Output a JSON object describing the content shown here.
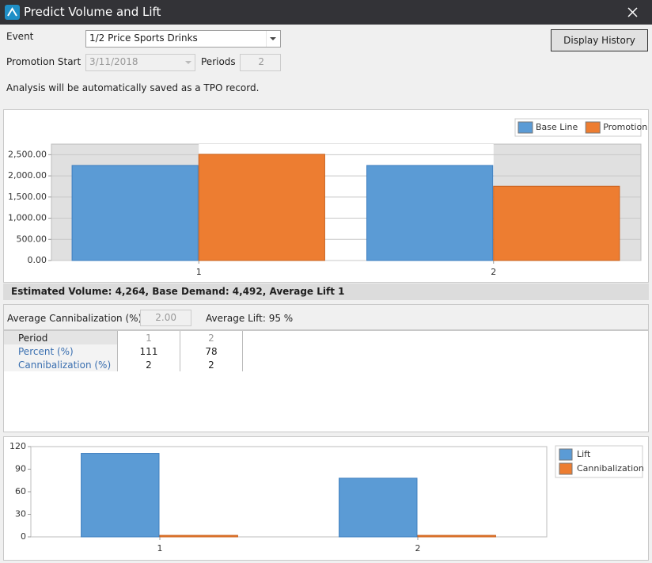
{
  "window": {
    "title": "Predict Volume and Lift"
  },
  "form": {
    "event_label": "Event",
    "event_value": "1/2 Price Sports Drinks",
    "display_history": "Display History",
    "promotion_start_label": "Promotion Start",
    "promotion_start_value": "3/11/2018",
    "periods_label": "Periods",
    "periods_value": "2",
    "note": "Analysis will be automatically saved as a TPO record."
  },
  "summary": "Estimated Volume: 4,264, Base Demand: 4,492, Average Lift 1",
  "cannibalization": {
    "label": "Average Cannibalization (%)",
    "value": "2.00",
    "average_lift": "Average Lift: 95 %"
  },
  "table": {
    "header": [
      "Period",
      "1",
      "2"
    ],
    "rows": [
      [
        "Percent (%)",
        "111",
        "78"
      ],
      [
        "Cannibalization (%)",
        "2",
        "2"
      ]
    ]
  },
  "chart_data": [
    {
      "type": "bar",
      "categories": [
        "1",
        "2"
      ],
      "series": [
        {
          "name": "Base Line",
          "color": "#5b9bd5",
          "values": [
            2246,
            2246
          ]
        },
        {
          "name": "Promotion",
          "color": "#ed7d31",
          "values": [
            2510,
            1754
          ]
        }
      ],
      "ylim": [
        0,
        2750
      ],
      "yticks": [
        {
          "value": 0,
          "label": "0.00"
        },
        {
          "value": 500,
          "label": "500.00"
        },
        {
          "value": 1000,
          "label": "1,000.00"
        },
        {
          "value": 1500,
          "label": "1,500.00"
        },
        {
          "value": 2000,
          "label": "2,000.00"
        },
        {
          "value": 2500,
          "label": "2,500.00"
        }
      ],
      "grid": true,
      "legend": "top-right"
    },
    {
      "type": "bar",
      "categories": [
        "1",
        "2"
      ],
      "series": [
        {
          "name": "Lift",
          "color": "#5b9bd5",
          "values": [
            111,
            78
          ]
        },
        {
          "name": "Cannibalization",
          "color": "#ed7d31",
          "values": [
            2,
            2
          ]
        }
      ],
      "ylim": [
        0,
        120
      ],
      "yticks": [
        0,
        30,
        60,
        90,
        120
      ],
      "grid": false,
      "legend": "right"
    }
  ]
}
